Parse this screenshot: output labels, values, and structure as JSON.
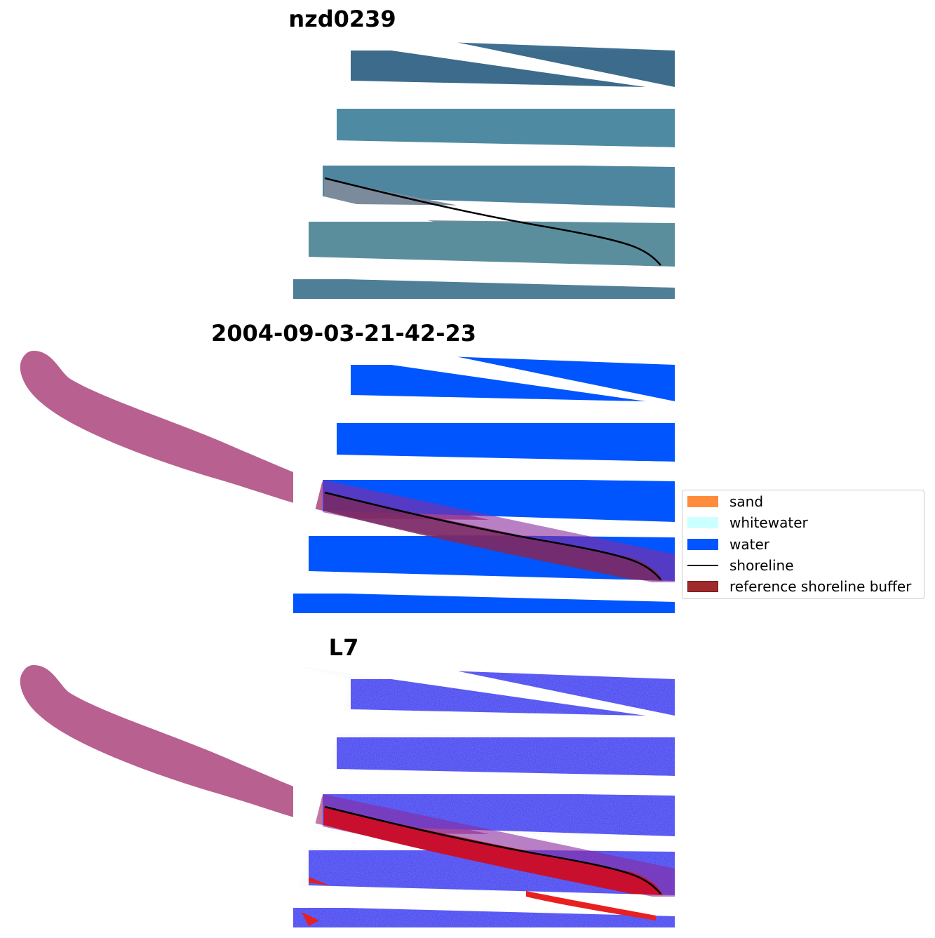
{
  "panels": [
    {
      "title": "nzd0239"
    },
    {
      "title": "2004-09-03-21-42-23"
    },
    {
      "title": "L7"
    }
  ],
  "legend": {
    "items": [
      {
        "label": "sand",
        "color": "#ff8c3c",
        "kind": "patch"
      },
      {
        "label": "whitewater",
        "color": "#ccffff",
        "kind": "patch"
      },
      {
        "label": "water",
        "color": "#0055ff",
        "kind": "patch"
      },
      {
        "label": "shoreline",
        "color": "#000000",
        "kind": "line"
      },
      {
        "label": "reference shoreline buffer",
        "color": "#9e2a2b",
        "kind": "patch"
      }
    ]
  },
  "colors": {
    "rgb_sea": "#4a7f99",
    "rgb_land": "#7a8a9a",
    "class_water": "#0055ff",
    "buffer": "#b86090",
    "prob_water": "#3c3cf0",
    "prob_sand": "#c8102e",
    "shoreline": "#000000"
  }
}
